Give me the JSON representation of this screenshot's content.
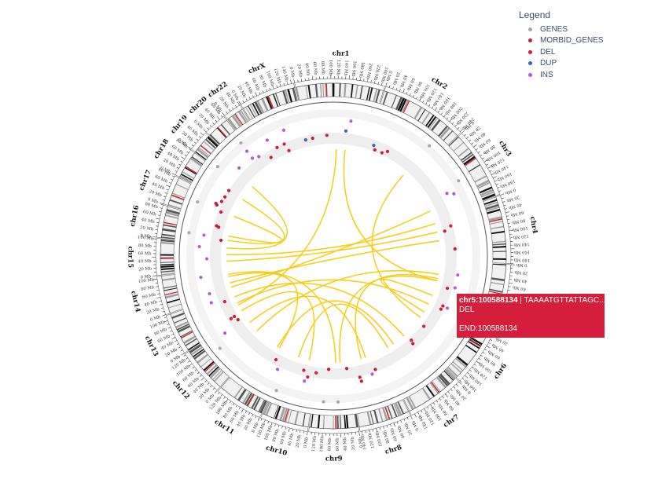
{
  "legend": {
    "title": "Legend",
    "items": [
      {
        "label": "GENES",
        "color": "#a9a9a9"
      },
      {
        "label": "MORBID_GENES",
        "color": "#c21d3a"
      },
      {
        "label": "DEL",
        "color": "#d7193b"
      },
      {
        "label": "DUP",
        "color": "#3e5fc4"
      },
      {
        "label": "INS",
        "color": "#b45ad6"
      }
    ]
  },
  "tooltip": {
    "position": "chr5:100588134",
    "sequence": " | TAAAATGTTATTAGC... > T",
    "type": "DEL",
    "end": "END:100588134"
  },
  "colors": {
    "links": "#f5cc14",
    "centromere": "#d21f2c"
  },
  "chromosomes": [
    {
      "label": "chr1",
      "size": 249
    },
    {
      "label": "chr2",
      "size": 243
    },
    {
      "label": "chr3",
      "size": 198
    },
    {
      "label": "chr4",
      "size": 190
    },
    {
      "label": "chr5",
      "size": 181
    },
    {
      "label": "chr6",
      "size": 171
    },
    {
      "label": "chr7",
      "size": 159
    },
    {
      "label": "chr8",
      "size": 145
    },
    {
      "label": "chr9",
      "size": 138
    },
    {
      "label": "chr10",
      "size": 134
    },
    {
      "label": "chr11",
      "size": 135
    },
    {
      "label": "chr12",
      "size": 133
    },
    {
      "label": "chr13",
      "size": 114
    },
    {
      "label": "chr14",
      "size": 107
    },
    {
      "label": "chr15",
      "size": 102
    },
    {
      "label": "chr16",
      "size": 90
    },
    {
      "label": "chr17",
      "size": 83
    },
    {
      "label": "chr18",
      "size": 80
    },
    {
      "label": "chr19",
      "size": 59
    },
    {
      "label": "chr20",
      "size": 64
    },
    {
      "label": "chr22",
      "size": 51
    },
    {
      "label": "chrX",
      "size": 156
    }
  ],
  "tick_unit": "Mb",
  "links": [
    [
      0,
      120,
      12,
      50
    ],
    [
      0,
      160,
      4,
      90
    ],
    [
      3,
      20,
      14,
      60
    ],
    [
      3,
      60,
      14,
      30
    ],
    [
      3,
      100,
      13,
      40
    ],
    [
      4,
      60,
      11,
      40
    ],
    [
      4,
      80,
      7,
      90
    ],
    [
      4,
      90,
      8,
      40
    ],
    [
      5,
      20,
      12,
      60
    ],
    [
      5,
      60,
      4,
      160
    ],
    [
      6,
      30,
      12,
      90
    ],
    [
      6,
      90,
      10,
      60
    ],
    [
      7,
      70,
      11,
      90
    ],
    [
      8,
      60,
      13,
      80
    ],
    [
      9,
      40,
      12,
      20
    ],
    [
      16,
      40,
      15,
      40
    ],
    [
      17,
      40,
      15,
      20
    ],
    [
      18,
      30,
      14,
      90
    ],
    [
      2,
      160,
      13,
      20
    ],
    [
      1,
      200,
      5,
      90
    ],
    [
      10,
      50,
      13,
      70
    ],
    [
      9,
      90,
      6,
      120
    ]
  ]
}
